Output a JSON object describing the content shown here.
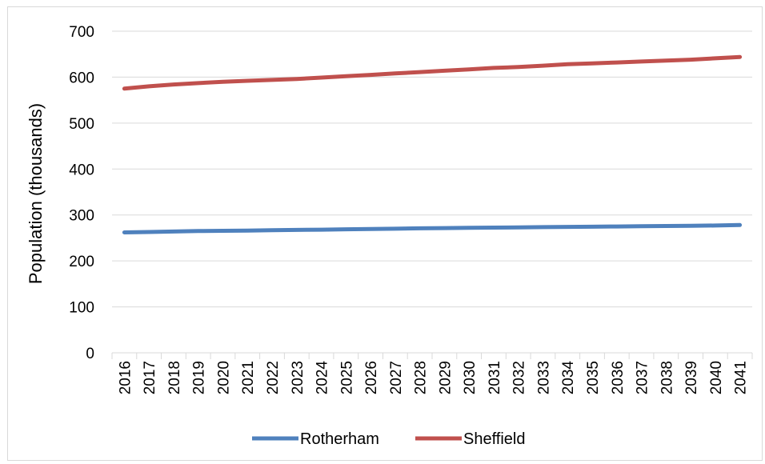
{
  "chart_data": {
    "type": "line",
    "title": "",
    "xlabel": "",
    "ylabel": "Population (thousands)",
    "ylim": [
      0,
      700
    ],
    "yticks": [
      0,
      100,
      200,
      300,
      400,
      500,
      600,
      700
    ],
    "grid": true,
    "legend_position": "bottom",
    "categories": [
      "2016",
      "2017",
      "2018",
      "2019",
      "2020",
      "2021",
      "2022",
      "2023",
      "2024",
      "2025",
      "2026",
      "2027",
      "2028",
      "2029",
      "2030",
      "2031",
      "2032",
      "2033",
      "2034",
      "2035",
      "2036",
      "2037",
      "2038",
      "2039",
      "2040",
      "2041"
    ],
    "series": [
      {
        "name": "Rotherham",
        "color": "#4f81bd",
        "values": [
          262,
          263,
          264,
          265,
          265.5,
          266,
          267,
          267.5,
          268,
          268.8,
          269.5,
          270,
          271,
          271.5,
          272,
          272.5,
          273,
          273.5,
          274,
          274.5,
          275,
          275.5,
          276,
          276.5,
          277,
          278
        ]
      },
      {
        "name": "Sheffield",
        "color": "#c0504d",
        "values": [
          575,
          580,
          584,
          587,
          590,
          592,
          594,
          596,
          599,
          602,
          605,
          608,
          611,
          614,
          617,
          620,
          622,
          625,
          628,
          630,
          632,
          634,
          636,
          638,
          641,
          644
        ]
      }
    ]
  }
}
